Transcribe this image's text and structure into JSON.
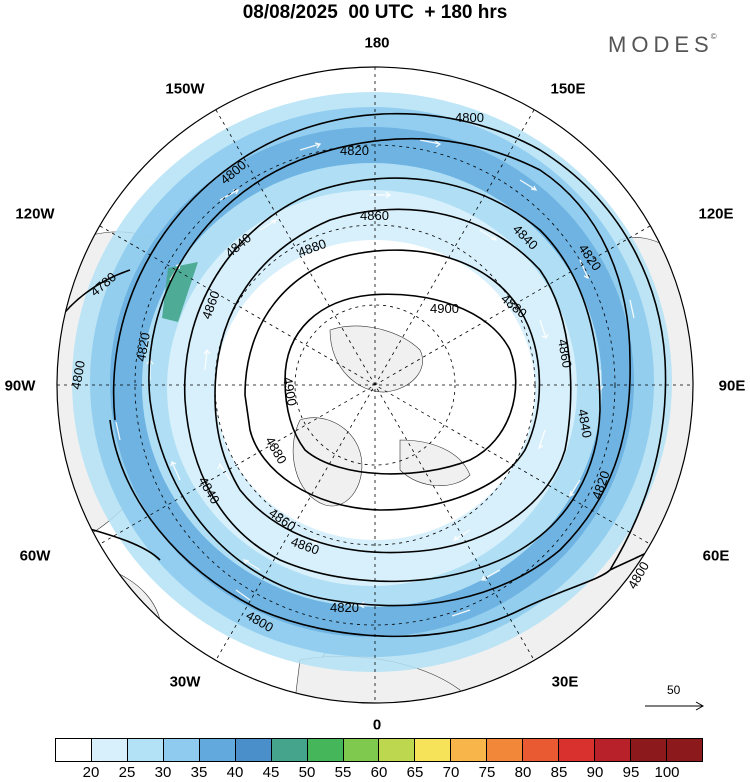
{
  "title": "08/08/2025  00 UTC  + 180 hrs",
  "brand": "MODES",
  "brand_mark": "©",
  "longitude_labels": {
    "top": "180",
    "bottom": "0",
    "left": "90W",
    "right": "90E",
    "upper_left": "150W",
    "upper_right": "150E",
    "mid_upper_left": "120W",
    "mid_upper_right": "120E",
    "mid_lower_left": "60W",
    "mid_lower_right": "60E",
    "lower_left": "30W",
    "lower_right": "30E"
  },
  "contour_labels": [
    "4780",
    "4800",
    "4800",
    "4800",
    "4800",
    "4800",
    "4820",
    "4820",
    "4820",
    "4820",
    "4820",
    "4840",
    "4840",
    "4840",
    "4840",
    "4860",
    "4860",
    "4860",
    "4860",
    "4860",
    "4880",
    "4880",
    "4880",
    "4900",
    "4900"
  ],
  "contour_levels": [
    4780,
    4800,
    4820,
    4840,
    4860,
    4880,
    4900
  ],
  "reference_vector": "50",
  "colorbar": {
    "labels": [
      "20",
      "25",
      "30",
      "35",
      "40",
      "45",
      "50",
      "55",
      "60",
      "65",
      "70",
      "75",
      "80",
      "85",
      "90",
      "95",
      "100"
    ],
    "colors": [
      "#ffffff",
      "#d7f0fb",
      "#b3e2f6",
      "#8ecbee",
      "#62a9dd",
      "#4a8fca",
      "#44a58c",
      "#45b65a",
      "#80c94f",
      "#bdd84e",
      "#f7e35a",
      "#f8b64a",
      "#f2873a",
      "#e95a33",
      "#d9312d",
      "#b8202a",
      "#8c1a1c"
    ]
  },
  "land_color": "#f0f0f0",
  "ocean_color": "#ffffff",
  "contour_color": "#000000"
}
